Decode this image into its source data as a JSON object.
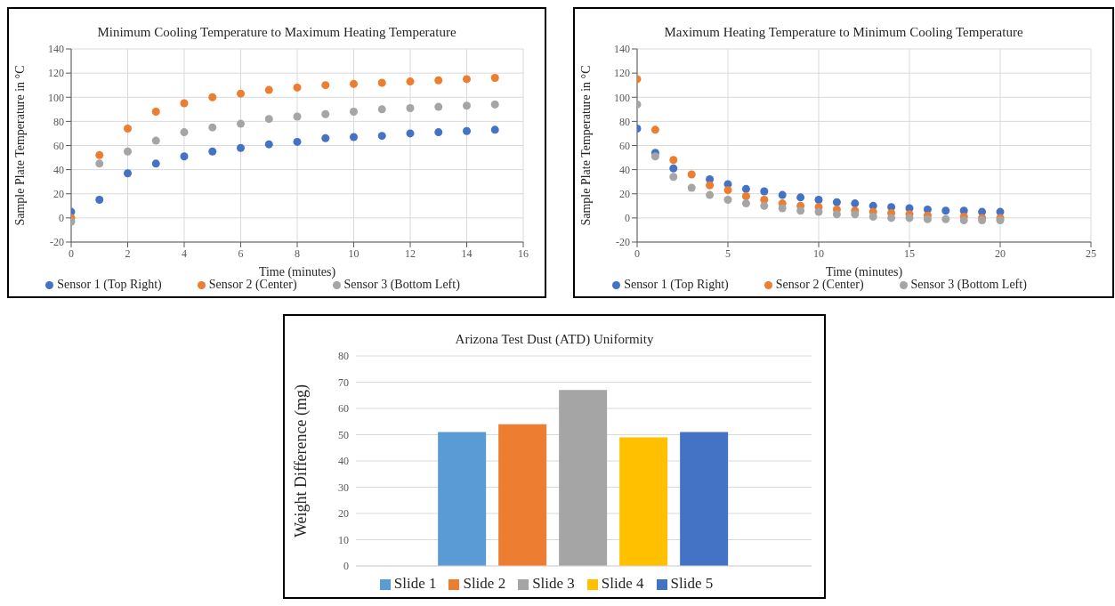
{
  "chart_data": [
    {
      "type": "scatter",
      "title": "Minimum Cooling Temperature to Maximum Heating Temperature",
      "xlabel": "Time (minutes)",
      "ylabel": "Sample Plate Temperature in °C",
      "x": [
        0,
        1,
        2,
        3,
        4,
        5,
        6,
        7,
        8,
        9,
        10,
        11,
        12,
        13,
        14,
        15
      ],
      "xlim": [
        0,
        16
      ],
      "xticks": [
        0,
        2,
        4,
        6,
        8,
        10,
        12,
        14,
        16
      ],
      "ylim": [
        -20,
        140
      ],
      "yticks": [
        -20,
        0,
        20,
        40,
        60,
        80,
        100,
        120,
        140
      ],
      "grid": true,
      "legend": "bottom",
      "marker": "circle",
      "series": [
        {
          "name": "Sensor 1 (Top Right)",
          "color": "#4472c4",
          "values": [
            5,
            15,
            37,
            45,
            51,
            55,
            58,
            61,
            63,
            66,
            67,
            68,
            70,
            71,
            72,
            73
          ]
        },
        {
          "name": "Sensor 2 (Center)",
          "color": "#ed7d31",
          "values": [
            0,
            52,
            74,
            88,
            95,
            100,
            103,
            106,
            108,
            110,
            111,
            112,
            113,
            114,
            115,
            116
          ]
        },
        {
          "name": "Sensor 3 (Bottom Left)",
          "color": "#a5a5a5",
          "values": [
            -3,
            45,
            55,
            64,
            71,
            75,
            78,
            82,
            84,
            86,
            88,
            90,
            91,
            92,
            93,
            94
          ]
        }
      ]
    },
    {
      "type": "scatter",
      "title": "Maximum Heating Temperature to Minimum Cooling Temperature",
      "xlabel": "Time (minutes)",
      "ylabel": "Sample Plate Temperature in °C",
      "x": [
        0,
        1,
        2,
        3,
        4,
        5,
        6,
        7,
        8,
        9,
        10,
        11,
        12,
        13,
        14,
        15,
        16,
        17,
        18,
        19,
        20
      ],
      "xlim": [
        0,
        25
      ],
      "xticks": [
        0,
        5,
        10,
        15,
        20,
        25
      ],
      "ylim": [
        -20,
        140
      ],
      "yticks": [
        -20,
        0,
        20,
        40,
        60,
        80,
        100,
        120,
        140
      ],
      "grid": true,
      "legend": "bottom",
      "marker": "circle",
      "series": [
        {
          "name": "Sensor 1 (Top Right)",
          "color": "#4472c4",
          "values": [
            74,
            54,
            41,
            null,
            32,
            28,
            24,
            22,
            19,
            17,
            15,
            13,
            12,
            10,
            9,
            8,
            7,
            6,
            6,
            5,
            5
          ]
        },
        {
          "name": "Sensor 2 (Center)",
          "color": "#ed7d31",
          "values": [
            115,
            73,
            48,
            36,
            27,
            23,
            18,
            15,
            12,
            10,
            9,
            7,
            6,
            5,
            4,
            3,
            2,
            null,
            1,
            0,
            0
          ]
        },
        {
          "name": "Sensor 3 (Bottom Left)",
          "color": "#a5a5a5",
          "values": [
            94,
            51,
            34,
            25,
            19,
            15,
            12,
            10,
            8,
            6,
            5,
            3,
            3,
            1,
            0,
            0,
            -1,
            -1,
            -2,
            -2,
            -2
          ]
        }
      ]
    },
    {
      "type": "bar",
      "title": "Arizona Test Dust (ATD) Uniformity",
      "ylabel": "Weight Difference (mg)",
      "categories": [
        null
      ],
      "ylim": [
        0,
        80
      ],
      "yticks": [
        0,
        10,
        20,
        30,
        40,
        50,
        60,
        70,
        80
      ],
      "grid": "y",
      "legend": "bottom",
      "series": [
        {
          "name": "Slide 1",
          "color": "#5b9bd5",
          "values": [
            51
          ]
        },
        {
          "name": "Slide 2",
          "color": "#ed7d31",
          "values": [
            54
          ]
        },
        {
          "name": "Slide 3",
          "color": "#a5a5a5",
          "values": [
            67
          ]
        },
        {
          "name": "Slide 4",
          "color": "#ffc000",
          "values": [
            49
          ]
        },
        {
          "name": "Slide 5",
          "color": "#4472c4",
          "values": [
            51
          ]
        }
      ]
    }
  ]
}
